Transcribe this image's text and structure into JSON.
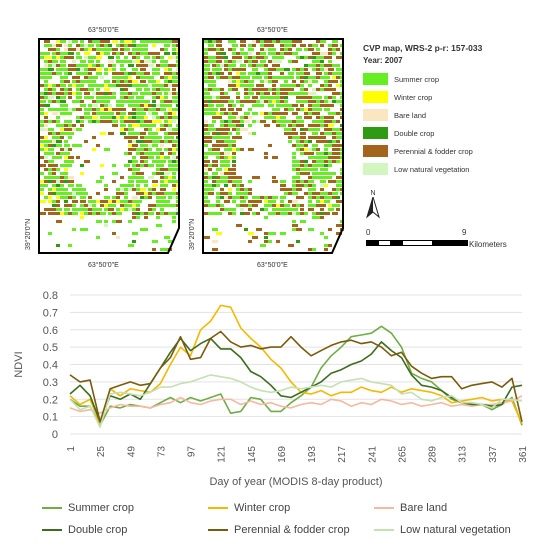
{
  "maps": {
    "top_coord": "63°50'0\"E",
    "bottom_coord": "63°50'0\"E",
    "left_coord": "39°20'0\"N",
    "title": "CVP map, WRS-2 p-r: 157-033",
    "year": "Year: 2007",
    "legend": [
      {
        "label": "Summer crop",
        "color": "#66ee22"
      },
      {
        "label": "Winter crop",
        "color": "#ffff00"
      },
      {
        "label": "Bare land",
        "color": "#fbe6c2"
      },
      {
        "label": "Double crop",
        "color": "#2f9b14"
      },
      {
        "label": "Perennial & fodder crop",
        "color": "#a3651b"
      },
      {
        "label": "Low natural vegetation",
        "color": "#d3f5c0"
      }
    ],
    "north_label": "N",
    "scale": {
      "start": "0",
      "end": "9",
      "units": "Kilometers"
    }
  },
  "chart_data": {
    "type": "line",
    "ylabel": "NDVI",
    "xlabel": "Day of year (MODIS 8-day product)",
    "xticks": [
      1,
      25,
      49,
      73,
      97,
      121,
      145,
      169,
      193,
      217,
      241,
      265,
      289,
      313,
      337,
      361
    ],
    "yticks": [
      "0",
      "0.1",
      "0.2",
      "0.3",
      "0.4",
      "0.5",
      "0.6",
      "0.7",
      "0.8"
    ],
    "xlim": [
      1,
      361
    ],
    "ylim": [
      0,
      0.8
    ],
    "x": [
      1,
      9,
      17,
      25,
      33,
      41,
      49,
      57,
      65,
      73,
      81,
      89,
      97,
      105,
      113,
      121,
      129,
      137,
      145,
      153,
      161,
      169,
      177,
      185,
      193,
      201,
      209,
      217,
      225,
      233,
      241,
      249,
      257,
      265,
      273,
      281,
      289,
      297,
      305,
      313,
      321,
      329,
      337,
      345,
      353,
      361
    ],
    "series": [
      {
        "name": "Summer crop",
        "color": "#70ad47",
        "values": [
          0.2,
          0.16,
          0.16,
          0.05,
          0.16,
          0.15,
          0.17,
          0.16,
          0.15,
          0.18,
          0.21,
          0.18,
          0.21,
          0.19,
          0.21,
          0.23,
          0.12,
          0.13,
          0.21,
          0.2,
          0.13,
          0.13,
          0.18,
          0.22,
          0.27,
          0.38,
          0.45,
          0.5,
          0.56,
          0.57,
          0.58,
          0.62,
          0.58,
          0.5,
          0.35,
          0.32,
          0.3,
          0.25,
          0.2,
          0.18,
          0.18,
          0.17,
          0.14,
          0.17,
          0.21,
          0.05
        ]
      },
      {
        "name": "Winter crop",
        "color": "#f5b800",
        "values": [
          0.22,
          0.17,
          0.2,
          0.06,
          0.26,
          0.22,
          0.26,
          0.25,
          0.24,
          0.29,
          0.4,
          0.5,
          0.45,
          0.6,
          0.65,
          0.74,
          0.73,
          0.61,
          0.55,
          0.5,
          0.43,
          0.38,
          0.3,
          0.24,
          0.23,
          0.25,
          0.22,
          0.24,
          0.24,
          0.27,
          0.25,
          0.24,
          0.27,
          0.24,
          0.26,
          0.25,
          0.24,
          0.22,
          0.18,
          0.19,
          0.2,
          0.21,
          0.19,
          0.2,
          0.19,
          0.06
        ]
      },
      {
        "name": "Bare land",
        "color": "#f4b9a0",
        "values": [
          0.15,
          0.13,
          0.14,
          0.12,
          0.15,
          0.17,
          0.16,
          0.16,
          0.15,
          0.17,
          0.18,
          0.21,
          0.18,
          0.17,
          0.19,
          0.2,
          0.2,
          0.17,
          0.19,
          0.17,
          0.18,
          0.16,
          0.15,
          0.17,
          0.18,
          0.17,
          0.2,
          0.19,
          0.16,
          0.18,
          0.17,
          0.2,
          0.19,
          0.17,
          0.18,
          0.16,
          0.17,
          0.18,
          0.16,
          0.17,
          0.16,
          0.17,
          0.17,
          0.18,
          0.19,
          0.22
        ]
      },
      {
        "name": "Double crop",
        "color": "#3e6b1f",
        "values": [
          0.23,
          0.28,
          0.22,
          0.07,
          0.22,
          0.2,
          0.23,
          0.2,
          0.29,
          0.38,
          0.47,
          0.55,
          0.48,
          0.52,
          0.55,
          0.49,
          0.49,
          0.44,
          0.36,
          0.33,
          0.28,
          0.22,
          0.21,
          0.24,
          0.27,
          0.3,
          0.35,
          0.37,
          0.4,
          0.42,
          0.46,
          0.53,
          0.48,
          0.44,
          0.34,
          0.28,
          0.27,
          0.25,
          0.21,
          0.18,
          0.17,
          0.17,
          0.16,
          0.17,
          0.27,
          0.28
        ]
      },
      {
        "name": "Perennial & fodder crop",
        "color": "#7b5a0c",
        "values": [
          0.34,
          0.3,
          0.31,
          0.07,
          0.26,
          0.28,
          0.3,
          0.28,
          0.29,
          0.38,
          0.44,
          0.56,
          0.43,
          0.44,
          0.55,
          0.59,
          0.53,
          0.5,
          0.51,
          0.49,
          0.5,
          0.5,
          0.56,
          0.5,
          0.45,
          0.48,
          0.51,
          0.53,
          0.54,
          0.52,
          0.53,
          0.5,
          0.45,
          0.47,
          0.39,
          0.35,
          0.32,
          0.33,
          0.33,
          0.26,
          0.28,
          0.29,
          0.3,
          0.27,
          0.32,
          0.07
        ]
      },
      {
        "name": "Low natural vegetation",
        "color": "#c5e0b4",
        "values": [
          0.2,
          0.14,
          0.16,
          0.04,
          0.23,
          0.24,
          0.23,
          0.22,
          0.24,
          0.27,
          0.27,
          0.29,
          0.3,
          0.32,
          0.34,
          0.33,
          0.32,
          0.3,
          0.27,
          0.25,
          0.24,
          0.25,
          0.27,
          0.26,
          0.27,
          0.28,
          0.27,
          0.3,
          0.31,
          0.32,
          0.3,
          0.29,
          0.28,
          0.23,
          0.24,
          0.2,
          0.19,
          0.21,
          0.22,
          0.18,
          0.18,
          0.17,
          0.15,
          0.2,
          0.2,
          0.19
        ]
      }
    ]
  }
}
